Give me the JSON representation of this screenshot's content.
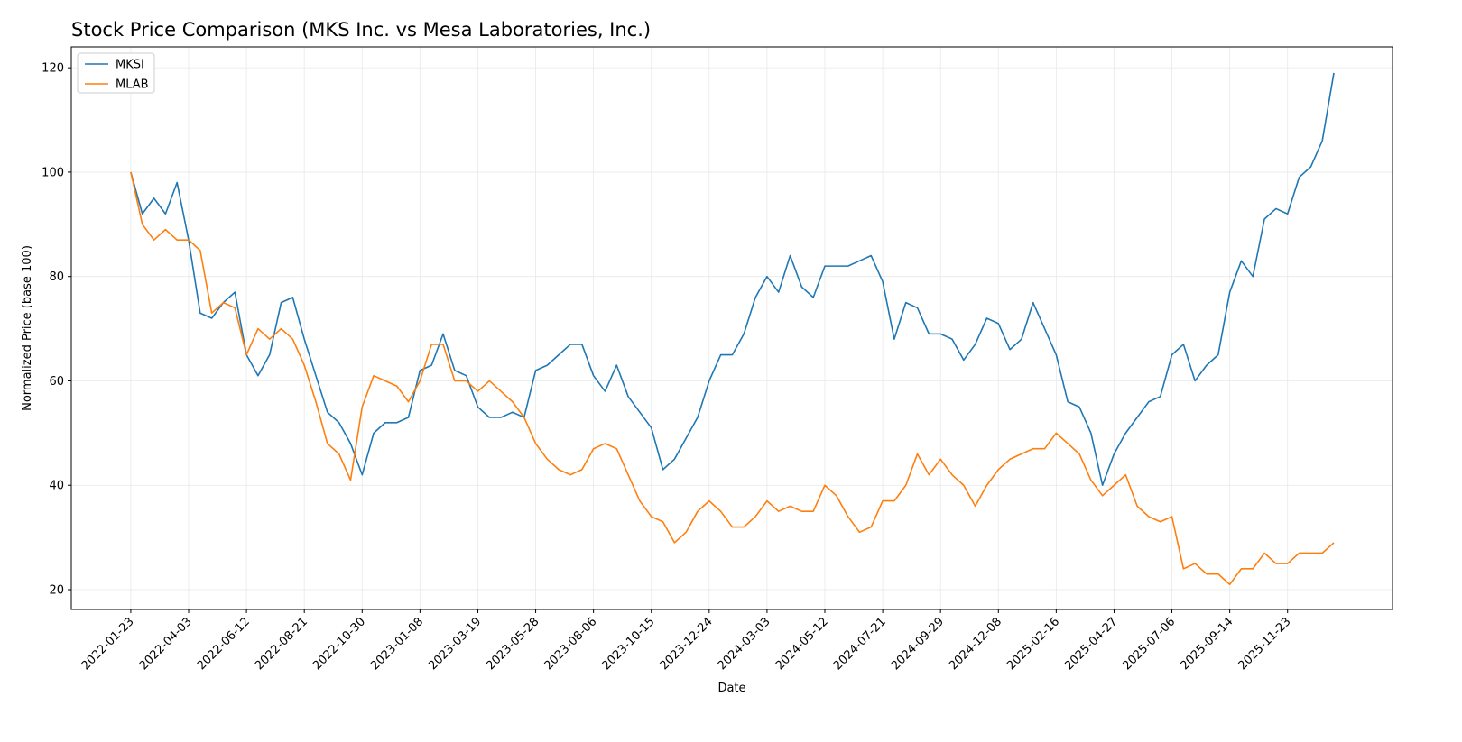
{
  "chart_data": {
    "type": "line",
    "title": "Stock Price Comparison (MKS Inc. vs Mesa Laboratories, Inc.)",
    "x_label": "Date",
    "y_label": "Normalized Price (base 100)",
    "x": [
      "2022-01-23",
      "2022-02-06",
      "2022-02-20",
      "2022-03-06",
      "2022-03-20",
      "2022-04-03",
      "2022-04-17",
      "2022-05-01",
      "2022-05-15",
      "2022-05-29",
      "2022-06-12",
      "2022-06-26",
      "2022-07-10",
      "2022-07-24",
      "2022-08-07",
      "2022-08-21",
      "2022-09-04",
      "2022-09-18",
      "2022-10-02",
      "2022-10-16",
      "2022-10-30",
      "2022-11-13",
      "2022-11-27",
      "2022-12-11",
      "2022-12-25",
      "2023-01-08",
      "2023-01-22",
      "2023-02-05",
      "2023-02-19",
      "2023-03-05",
      "2023-03-19",
      "2023-04-02",
      "2023-04-16",
      "2023-04-30",
      "2023-05-14",
      "2023-05-28",
      "2023-06-11",
      "2023-06-25",
      "2023-07-09",
      "2023-07-23",
      "2023-08-06",
      "2023-08-20",
      "2023-09-03",
      "2023-09-17",
      "2023-10-01",
      "2023-10-15",
      "2023-10-29",
      "2023-11-12",
      "2023-11-26",
      "2023-12-10",
      "2023-12-24",
      "2024-01-07",
      "2024-01-21",
      "2024-02-04",
      "2024-02-18",
      "2024-03-03",
      "2024-03-17",
      "2024-03-31",
      "2024-04-14",
      "2024-04-28",
      "2024-05-12",
      "2024-05-26",
      "2024-06-09",
      "2024-06-23",
      "2024-07-07",
      "2024-07-21",
      "2024-08-04",
      "2024-08-18",
      "2024-09-01",
      "2024-09-15",
      "2024-09-29",
      "2024-10-13",
      "2024-10-27",
      "2024-11-10",
      "2024-11-24",
      "2024-12-08",
      "2024-12-22",
      "2025-01-05",
      "2025-01-19",
      "2025-02-02",
      "2025-02-16",
      "2025-03-02",
      "2025-03-16",
      "2025-03-30",
      "2025-04-13",
      "2025-04-27",
      "2025-05-11",
      "2025-05-25",
      "2025-06-08",
      "2025-06-22",
      "2025-07-06",
      "2025-07-20",
      "2025-08-03",
      "2025-08-17",
      "2025-08-31",
      "2025-09-14",
      "2025-09-28",
      "2025-10-12",
      "2025-10-26",
      "2025-11-09",
      "2025-11-23",
      "2025-12-07",
      "2025-12-21",
      "2026-01-04",
      "2026-01-18"
    ],
    "series": [
      {
        "name": "MKSI",
        "color": "#1f77b4",
        "values": [
          100,
          92,
          95,
          92,
          98,
          87,
          73,
          72,
          75,
          77,
          65,
          61,
          65,
          75,
          76,
          68,
          61,
          54,
          52,
          48,
          42,
          50,
          52,
          52,
          53,
          62,
          63,
          69,
          62,
          61,
          55,
          53,
          53,
          54,
          53,
          62,
          63,
          65,
          67,
          67,
          61,
          58,
          63,
          57,
          54,
          51,
          43,
          45,
          49,
          53,
          60,
          65,
          65,
          69,
          76,
          80,
          77,
          84,
          78,
          76,
          82,
          82,
          82,
          83,
          84,
          79,
          68,
          75,
          74,
          69,
          69,
          68,
          64,
          67,
          72,
          71,
          66,
          68,
          75,
          70,
          65,
          56,
          55,
          50,
          40,
          46,
          50,
          53,
          56,
          57,
          65,
          67,
          60,
          63,
          65,
          77,
          83,
          80,
          91,
          93,
          92,
          99,
          101,
          106,
          119
        ]
      },
      {
        "name": "MLAB",
        "color": "#ff7f0e",
        "values": [
          100,
          90,
          87,
          89,
          87,
          87,
          85,
          73,
          75,
          74,
          65,
          70,
          68,
          70,
          68,
          63,
          56,
          48,
          46,
          41,
          55,
          61,
          60,
          59,
          56,
          60,
          67,
          67,
          60,
          60,
          58,
          60,
          58,
          56,
          53,
          48,
          45,
          43,
          42,
          43,
          47,
          48,
          47,
          42,
          37,
          34,
          33,
          29,
          31,
          35,
          37,
          35,
          32,
          32,
          34,
          37,
          35,
          36,
          35,
          35,
          40,
          38,
          34,
          31,
          32,
          37,
          37,
          40,
          46,
          42,
          45,
          42,
          40,
          36,
          40,
          43,
          45,
          46,
          47,
          47,
          50,
          48,
          46,
          41,
          38,
          40,
          42,
          36,
          34,
          33,
          34,
          24,
          25,
          23,
          23,
          21,
          24,
          24,
          27,
          25,
          25,
          27,
          27,
          27,
          29
        ]
      }
    ],
    "xlim": [
      "2021-11-12",
      "2026-03-30"
    ],
    "xticks": [
      "2022-01-23",
      "2022-04-03",
      "2022-06-12",
      "2022-08-21",
      "2022-10-30",
      "2023-01-08",
      "2023-03-19",
      "2023-05-28",
      "2023-08-06",
      "2023-10-15",
      "2023-12-24",
      "2024-03-03",
      "2024-05-12",
      "2024-07-21",
      "2024-09-29",
      "2024-12-08",
      "2025-02-16",
      "2025-04-27",
      "2025-07-06",
      "2025-09-14",
      "2025-11-23"
    ],
    "ylim": [
      16.2,
      124
    ],
    "yticks": [
      20,
      40,
      60,
      80,
      100,
      120
    ],
    "grid": true,
    "legend": "upper left"
  }
}
